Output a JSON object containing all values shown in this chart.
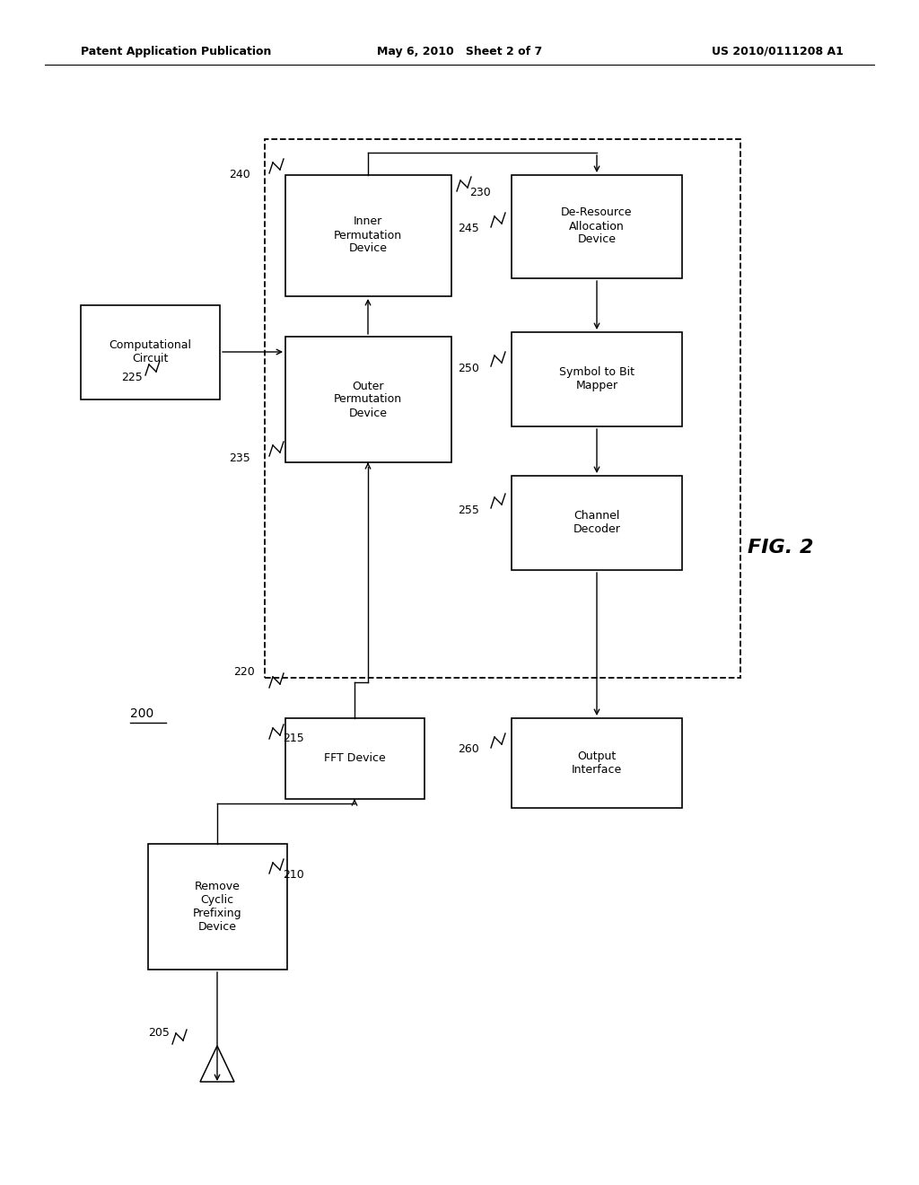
{
  "bg_color": "#ffffff",
  "header_left": "Patent Application Publication",
  "header_center": "May 6, 2010   Sheet 2 of 7",
  "header_right": "US 2010/0111208 A1",
  "fig_label": "FIG. 2",
  "system_label": "200"
}
